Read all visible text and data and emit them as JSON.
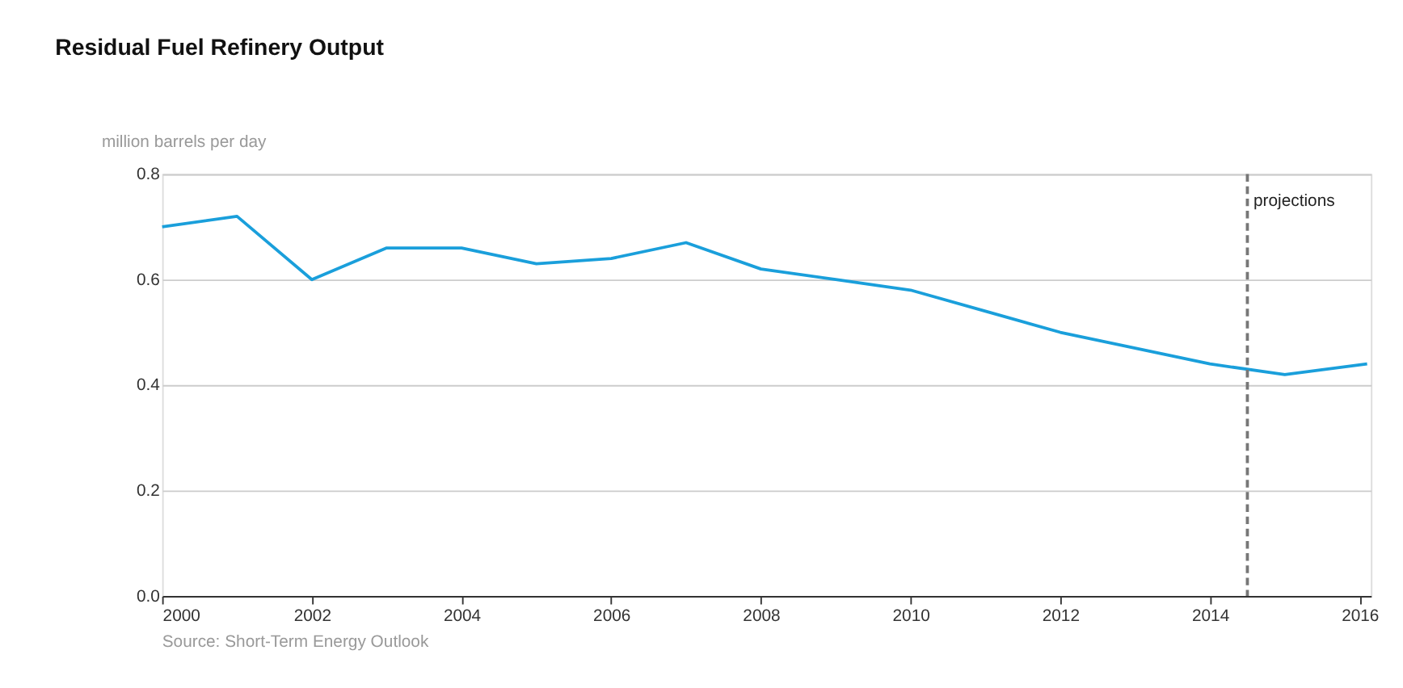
{
  "chart_data": {
    "type": "line",
    "title": "Residual Fuel Refinery Output",
    "ylabel": "million barrels per day",
    "x": [
      2000,
      2001,
      2002,
      2003,
      2004,
      2005,
      2006,
      2007,
      2008,
      2009,
      2010,
      2011,
      2012,
      2013,
      2014,
      2015,
      2016.1
    ],
    "series": [
      {
        "color": "#1a9fdb",
        "values": [
          0.7,
          0.72,
          0.6,
          0.66,
          0.66,
          0.63,
          0.64,
          0.67,
          0.62,
          0.6,
          0.58,
          0.54,
          0.5,
          0.47,
          0.44,
          0.42,
          0.44
        ]
      }
    ],
    "xlim": [
      2000,
      2016.15
    ],
    "xticks": [
      2000,
      2002,
      2004,
      2006,
      2008,
      2010,
      2012,
      2014,
      2016
    ],
    "ylim": [
      0,
      0.8
    ],
    "yticks": [
      {
        "value": 0,
        "label": "0.0"
      },
      0.2,
      0.4,
      0.6,
      0.8
    ],
    "grid": "y",
    "marker": "none",
    "line_style": "solid",
    "ref_lines": [
      {
        "axis": "x",
        "value": 2014.5,
        "label": "projections",
        "color": "#777777",
        "line_style": "dashed"
      }
    ],
    "annotations": [
      "Source: Short-Term Energy Outlook"
    ]
  }
}
